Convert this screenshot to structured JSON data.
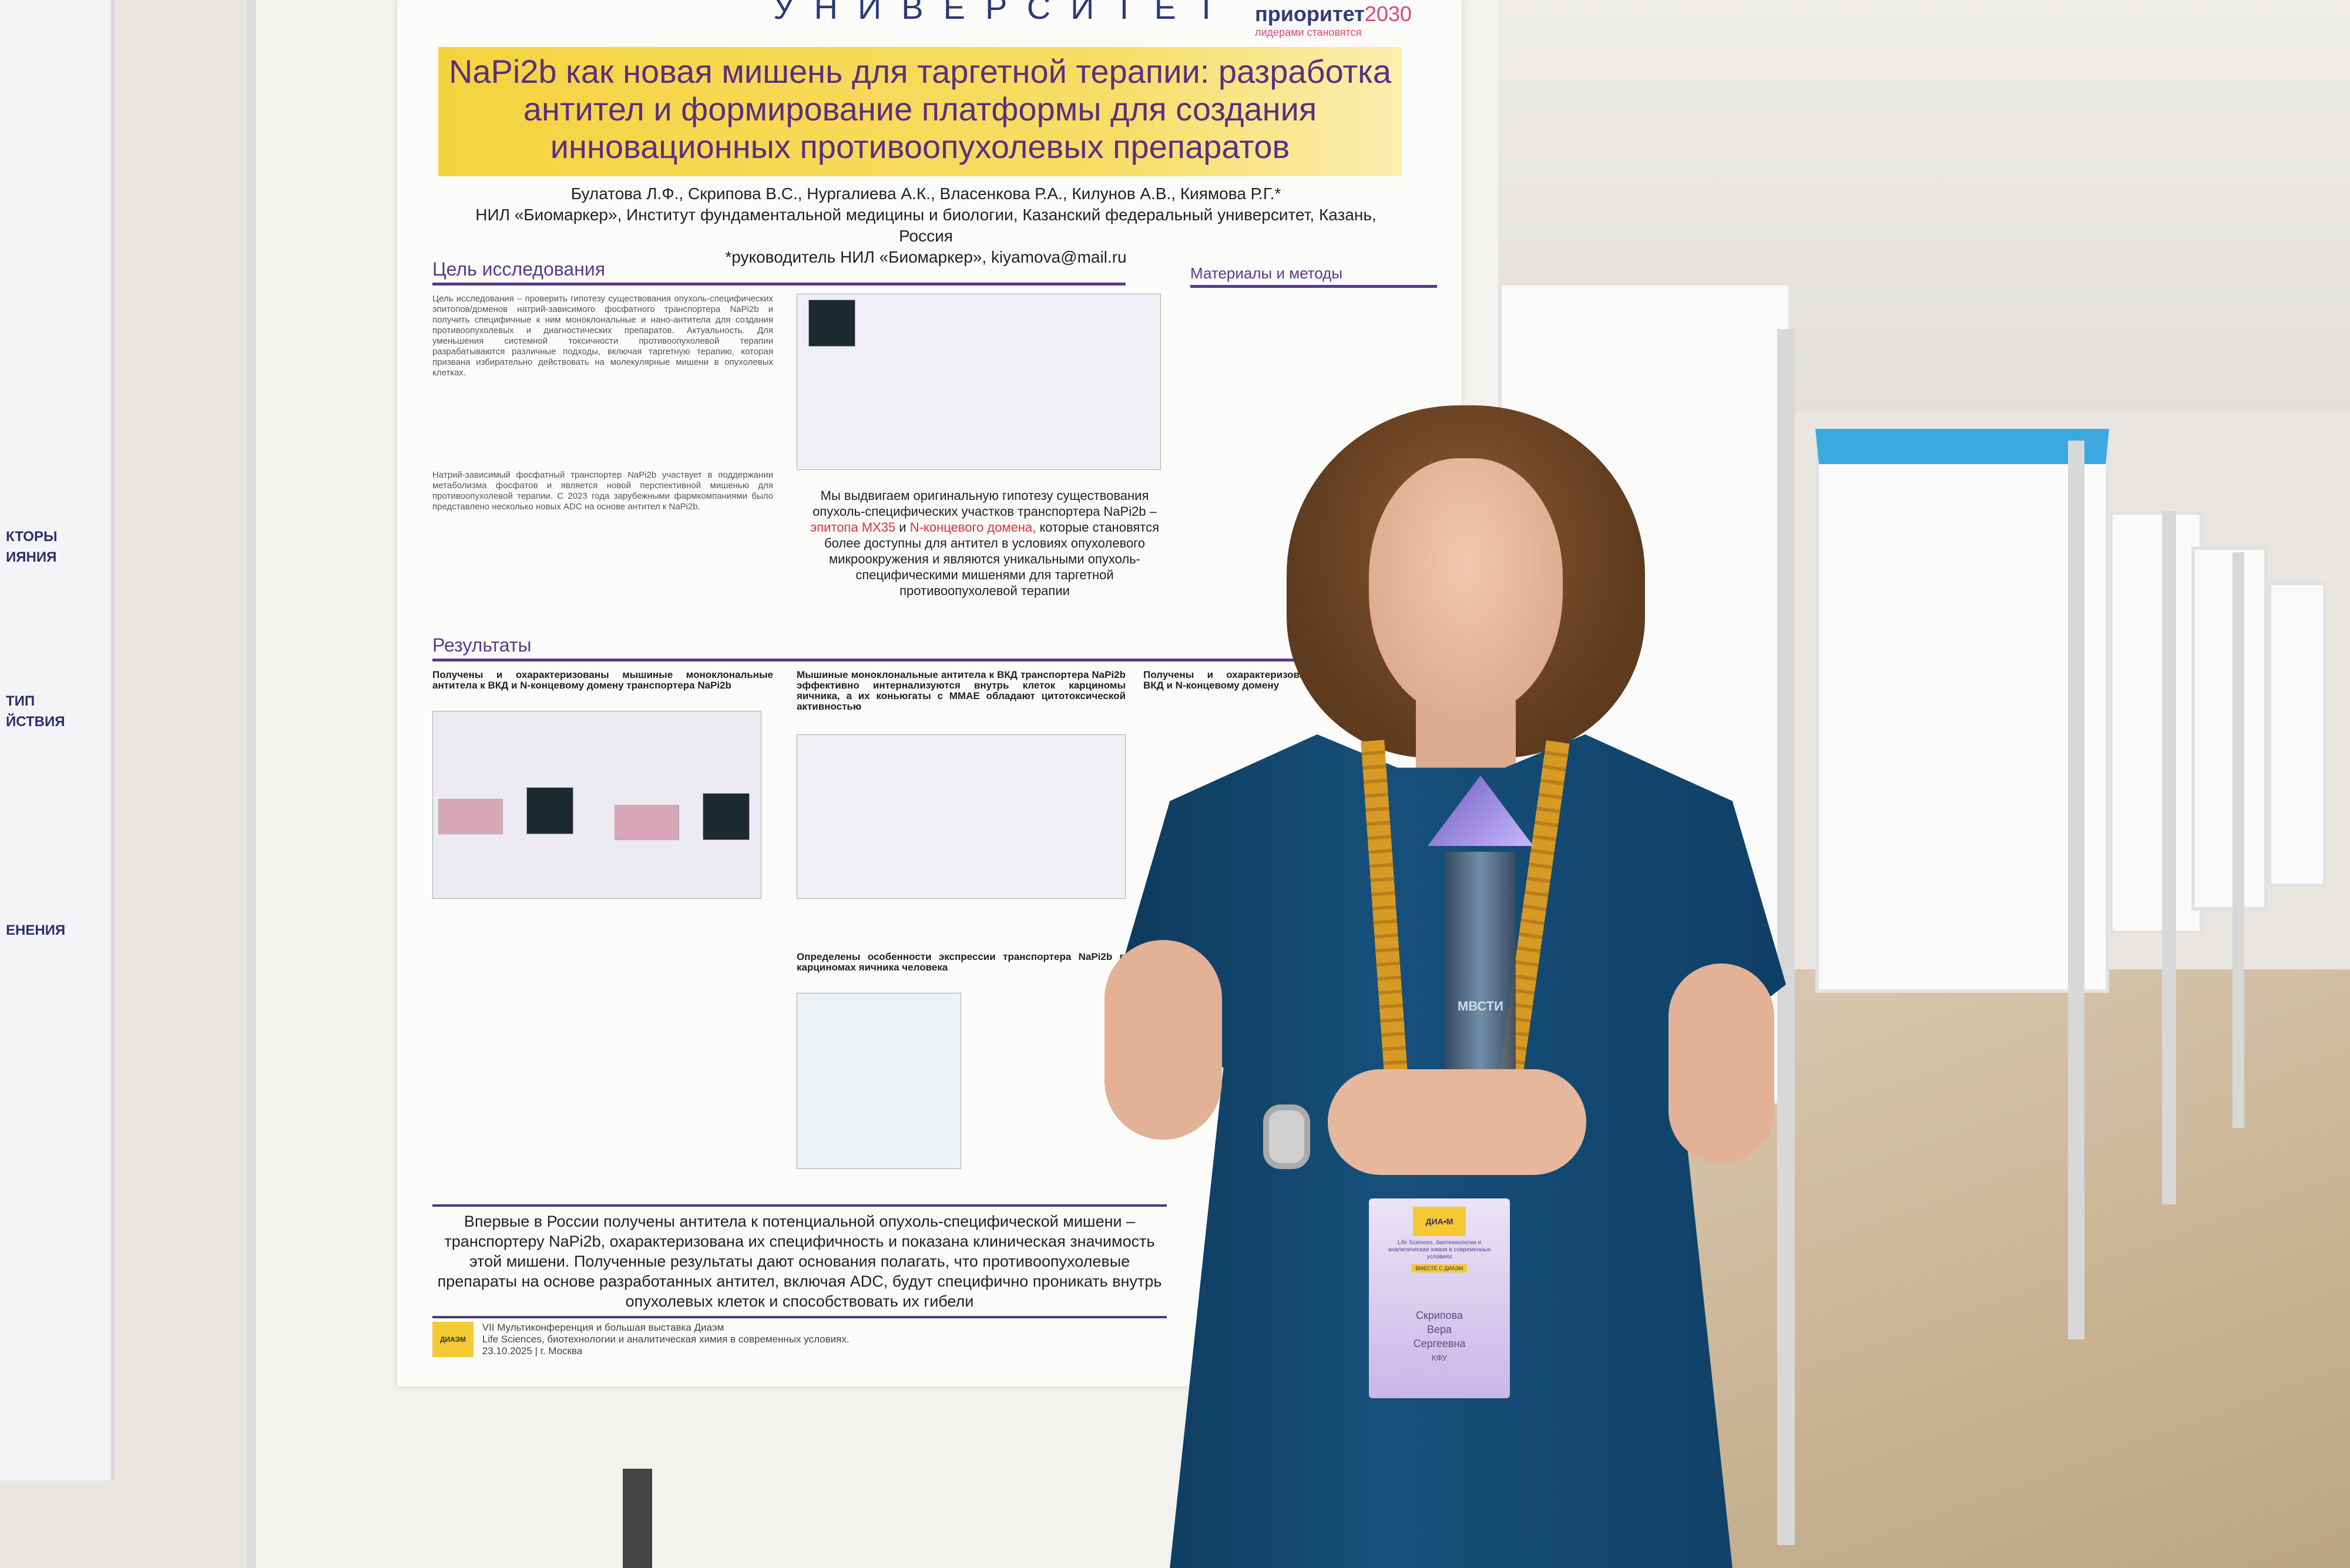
{
  "scene": {
    "description_colors": {
      "dress": "#14507a",
      "title_bar": "#f5d33f",
      "title_text": "#5b2f82",
      "badge": "#c8b7e8"
    }
  },
  "left_poster": {
    "fragments": [
      "КТОРЫ",
      "ИЯНИЯ",
      "ТИП",
      "ЙСТВИЯ",
      "ЕНЕНИЯ"
    ]
  },
  "poster": {
    "university": "УНИВЕРСИТЕТ",
    "priority_logo": "приоритет",
    "priority_year": "2030",
    "priority_tagline": "лидерами становятся",
    "title": "NaPi2b как новая мишень для таргетной терапии: разработка антител и формирование платформы для создания инновационных противоопухолевых препаратов",
    "authors": "Булатова Л.Ф., Скрипова В.С., Нургалиева А.К., Власенкова Р.А., Килунов А.В., Киямова Р.Г.*",
    "affiliation": "НИЛ «Биомаркер», Институт фундаментальной медицины и биологии, Казанский федеральный университет, Казань, Россия",
    "contact": "*руководитель НИЛ «Биомаркер», kiyamova@mail.ru",
    "sections": {
      "aim": "Цель исследования",
      "methods": "Материалы и методы",
      "results": "Результаты"
    },
    "aim_text": "Цель исследования – проверить гипотезу существования опухоль-специфических эпитопов/доменов натрий-зависимого фосфатного транспортера NaPi2b и получить специфичные к ним моноклональные и нано-антитела для создания противоопухолевых и диагностических препаратов. Актуальность. Для уменьшения системной токсичности противоопухолевой терапии разрабатываются различные подходы, включая таргетную терапию, которая призвана избирательно действовать на молекулярные мишени в опухолевых клетках.",
    "napi_text": "Натрий-зависимый фосфатный транспортер NaPi2b участвует в поддержании метаболизма фосфатов и является новой перспективной мишенью для противоопухолевой терапии. С 2023 года зарубежными фармкомпаниями было представлено несколько новых ADC на основе антител к NaPi2b.",
    "hypothesis": "Мы выдвигаем оригинальную гипотезу существования опухоль-специфических участков транспортера NaPi2b –",
    "hypothesis_red1": "эпитопа MX35",
    "hypothesis_and": "и",
    "hypothesis_red2": "N-концевого домена,",
    "hypothesis_end": "которые становятся более доступны для антител в условиях опухолевого микроокружения и являются уникальными опухоль-специфическими мишенями для таргетной противоопухолевой терапии",
    "results_col1": "Получены и охарактеризованы мышиные моноклональные антитела к ВКД и N-концевому домену транспортера NaPi2b",
    "results_col2": "Мышиные моноклональные антитела к ВКД транспортера NaPi2b эффективно интернализуются внутрь клеток карциномы яичника, а их коньюгаты с ММАЕ обладают цитотоксической активностью",
    "results_col3": "Получены и охарактеризованы ВКД и N-концевому домену",
    "expression": "Определены особенности экспрессии транспортера NaPi2b в карциномах яичника человека",
    "conclusion": "Впервые в России получены антитела к потенциальной опухоль-специфической мишени – транспортеру NaPi2b, охарактеризована их специфичность и показана клиническая значимость этой мишени. Полученные результаты дают основания полагать, что противоопухолевые препараты на основе разработанных антител, включая ADC, будут специфично проникать внутрь опухолевых клеток и способствовать их гибели",
    "footer_logo": "ДИАЭМ",
    "footer_line1": "VII Мультиконференция и большая выставка Диаэм",
    "footer_line2": "Life Sciences, биотехнологии и аналитическая химия в современных условиях.",
    "footer_line3": "23.10.2025 | г. Москва"
  },
  "award": {
    "text": "МВСТИ"
  },
  "badge": {
    "logo": "ДИА•М",
    "subtitle": "Life Sciences, биотехнологии и аналитическая химия в современных условиях",
    "tag": "ВМЕСТЕ С ДИАЭМ",
    "name_last": "Скрипова",
    "name_first": "Вера",
    "name_middle": "Сергеевна",
    "org": "КФУ"
  }
}
